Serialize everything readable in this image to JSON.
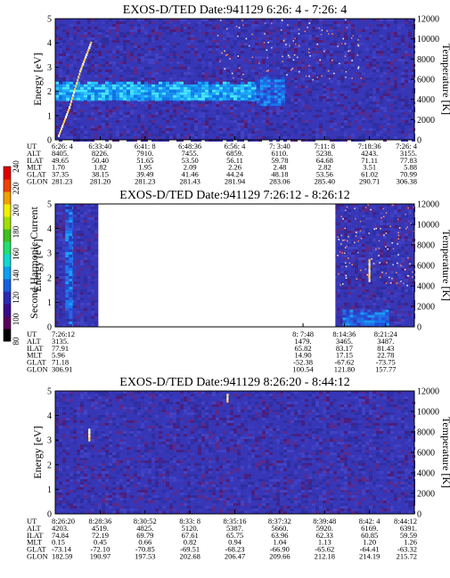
{
  "colorbar": {
    "label": "Second Harmonic Current",
    "ticks": [
      "80",
      "100",
      "120",
      "140",
      "160",
      "180",
      "200",
      "220",
      "240"
    ],
    "colors": [
      "#000000",
      "#5a005a",
      "#3a0a8c",
      "#2a2ab4",
      "#1560e0",
      "#0aa0f0",
      "#10d8d0",
      "#20e070",
      "#40c020",
      "#a0e000",
      "#f0f000",
      "#f0a000",
      "#f04000",
      "#e00000"
    ]
  },
  "background_color": "#3636b6",
  "chart_data": [
    {
      "type": "heatmap",
      "title": "EXOS-D/TED   Date:941129  6:26: 4 - 7:26: 4",
      "ylabel": "Energy [eV]",
      "y2label": "Temperature [K]",
      "ylim": [
        0,
        5
      ],
      "y2lim": [
        0,
        12000
      ],
      "yticks": [
        "0",
        "1",
        "2",
        "3",
        "4",
        "5"
      ],
      "y2ticks": [
        "0",
        "2000",
        "4000",
        "6000",
        "8000",
        "10000",
        "12000"
      ],
      "gaps": [],
      "features": [
        {
          "kind": "band",
          "t_from": 0.0,
          "t_to": 0.56,
          "e_low": 1.6,
          "e_high": 2.4,
          "level": "high"
        },
        {
          "kind": "band",
          "t_from": 0.56,
          "t_to": 0.64,
          "e_low": 1.4,
          "e_high": 2.6,
          "level": "mid"
        },
        {
          "kind": "temperature_trace",
          "points": [
            [
              0.01,
              400
            ],
            [
              0.04,
              3200
            ],
            [
              0.07,
              6800
            ],
            [
              0.1,
              9600
            ]
          ]
        },
        {
          "kind": "temperature_scatter",
          "t_from": 0.45,
          "t_to": 0.85,
          "k_low": 6000,
          "k_high": 12000
        }
      ],
      "row_labels": [
        "UT",
        "ALT",
        "ILAT",
        "MLT",
        "GLAT",
        "GLON"
      ],
      "columns": [
        [
          "6:26: 4",
          "8405.",
          "49.65",
          "1.70",
          "37.35",
          "281.23"
        ],
        [
          "6:33:40",
          "8226.",
          "50.40",
          "1.82",
          "38.15",
          "281.20"
        ],
        [
          "6:41: 8",
          "7910.",
          "51.65",
          "1.95",
          "39.49",
          "281.23"
        ],
        [
          "6:48:36",
          "7455.",
          "53.50",
          "2.09",
          "41.46",
          "281.43"
        ],
        [
          "6:56: 4",
          "6859.",
          "56.11",
          "2.26",
          "44.24",
          "281.94"
        ],
        [
          "7: 3:40",
          "6110.",
          "59.78",
          "2.48",
          "48.18",
          "283.06"
        ],
        [
          "7:11: 8",
          "5238.",
          "64.68",
          "2.82",
          "53.56",
          "285.40"
        ],
        [
          "7:18:36",
          "4243.",
          "71.11",
          "3.51",
          "61.02",
          "290.71"
        ],
        [
          "7:26: 4",
          "3155.",
          "77.83",
          "5.88",
          "70.99",
          "306.38"
        ]
      ],
      "column_pos": [
        0,
        0.125,
        0.25,
        0.375,
        0.5,
        0.625,
        0.75,
        0.875,
        1.0
      ]
    },
    {
      "type": "heatmap",
      "title": "EXOS-D/TED   Date:941129  7:26:12 - 8:26:12",
      "ylabel": "Energy [eV]",
      "y2label": "Temperature [K]",
      "ylim": [
        0,
        5
      ],
      "y2lim": [
        0,
        12000
      ],
      "yticks": [
        "0",
        "1",
        "2",
        "3",
        "4",
        "5"
      ],
      "y2ticks": [
        "0",
        "2000",
        "4000",
        "6000",
        "8000",
        "10000",
        "12000"
      ],
      "gaps": [
        [
          0.05,
          0.0
        ],
        [
          0.12,
          0.78
        ]
      ],
      "features": [
        {
          "kind": "band",
          "t_from": 0.028,
          "t_to": 0.05,
          "e_low": 0.0,
          "e_high": 5.0,
          "level": "mid"
        },
        {
          "kind": "band",
          "t_from": 0.8,
          "t_to": 0.93,
          "e_low": 0.0,
          "e_high": 0.7,
          "level": "mid"
        },
        {
          "kind": "temperature_scatter",
          "t_from": 0.78,
          "t_to": 1.0,
          "k_low": 4000,
          "k_high": 12000
        },
        {
          "kind": "temperature_trace",
          "points": [
            [
              0.875,
              4500
            ],
            [
              0.875,
              6500
            ]
          ]
        }
      ],
      "row_labels": [
        "UT",
        "ALT",
        "ILAT",
        "MLT",
        "GLAT",
        "GLON"
      ],
      "columns": [
        [
          "7:26:12",
          "3135.",
          "77.91",
          "5.96",
          "71.18",
          "306.91"
        ],
        [
          "8: 7:48",
          "1479.",
          "65.82",
          "14.90",
          "-52.38",
          "100.54"
        ],
        [
          "8:14:36",
          "3465.",
          "83.17",
          "17.15",
          "-67.62",
          "121.80"
        ],
        [
          "8:21:24",
          "3487.",
          "81.43",
          "22.78",
          "-73.75",
          "157.77"
        ]
      ],
      "column_pos": [
        0,
        0.69,
        0.805,
        0.92
      ]
    },
    {
      "type": "heatmap",
      "title": "EXOS-D/TED   Date:941129  8:26:20 - 8:44:12",
      "ylabel": "Energy [eV]",
      "y2label": "Temperature [K]",
      "ylim": [
        0,
        5
      ],
      "y2lim": [
        0,
        12000
      ],
      "yticks": [
        "0",
        "1",
        "2",
        "3",
        "4",
        "5"
      ],
      "y2ticks": [
        "0",
        "2000",
        "4000",
        "6000",
        "8000",
        "10000",
        "12000"
      ],
      "gaps": [],
      "features": [
        {
          "kind": "temperature_trace",
          "points": [
            [
              0.095,
              7200
            ],
            [
              0.095,
              8200
            ]
          ]
        },
        {
          "kind": "temperature_trace",
          "points": [
            [
              0.48,
              11000
            ],
            [
              0.48,
              11600
            ]
          ]
        }
      ],
      "row_labels": [
        "UT",
        "ALT",
        "ILAT",
        "MLT",
        "GLAT",
        "GLON"
      ],
      "columns": [
        [
          "8:26:20",
          "4203.",
          "74.84",
          "0.15",
          "-73.14",
          "182.59"
        ],
        [
          "8:28:36",
          "4519.",
          "72.19",
          "0.45",
          "-72.10",
          "190.97"
        ],
        [
          "8:30:52",
          "4825.",
          "69.79",
          "0.66",
          "-70.85",
          "197.53"
        ],
        [
          "8:33: 8",
          "5120.",
          "67.61",
          "0.82",
          "-69.51",
          "202.68"
        ],
        [
          "8:35:16",
          "5387.",
          "65.75",
          "0.94",
          "-68.23",
          "206.47"
        ],
        [
          "8:37:32",
          "5660.",
          "63.96",
          "1.04",
          "-66.90",
          "209.66"
        ],
        [
          "8:39:48",
          "5920.",
          "62.33",
          "1.13",
          "-65.62",
          "212.18"
        ],
        [
          "8:42: 4",
          "6169.",
          "60.85",
          "1.20",
          "-64.41",
          "214.19"
        ],
        [
          "8:44:12",
          "6391.",
          "59.59",
          "1.26",
          "-63.32",
          "215.72"
        ]
      ],
      "column_pos": [
        0,
        0.125,
        0.25,
        0.375,
        0.5,
        0.625,
        0.75,
        0.875,
        1.0
      ]
    }
  ]
}
